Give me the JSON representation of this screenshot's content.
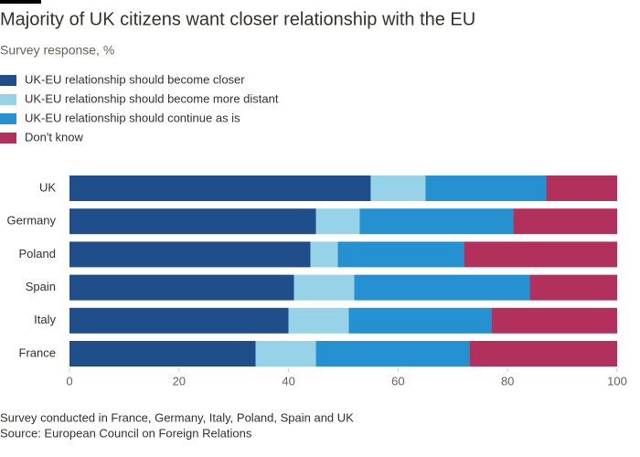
{
  "chart_data": {
    "type": "stacked-barh",
    "title": "Majority of UK citizens want closer relationship with the EU",
    "subtitle": "Survey response, %",
    "categories": [
      "UK",
      "Germany",
      "Poland",
      "Spain",
      "Italy",
      "France"
    ],
    "series": [
      {
        "name": "UK-EU relationship should become closer",
        "color": "#1f4e8a",
        "values": [
          55,
          45,
          44,
          41,
          40,
          34
        ]
      },
      {
        "name": "UK-EU relationship should become more distant",
        "color": "#96d3e8",
        "values": [
          10,
          8,
          5,
          11,
          11,
          11
        ]
      },
      {
        "name": "UK-EU relationship should continue as is",
        "color": "#2591d0",
        "values": [
          22,
          28,
          23,
          32,
          26,
          28
        ]
      },
      {
        "name": "Don't know",
        "color": "#b2305c",
        "values": [
          13,
          19,
          28,
          16,
          23,
          27
        ]
      }
    ],
    "xlim": [
      0,
      100
    ],
    "xticks": [
      0,
      20,
      40,
      60,
      80,
      100
    ],
    "notes": [
      "Survey conducted in France, Germany, Italy, Poland, Spain and UK",
      "Source: European Council on Foreign Relations"
    ]
  }
}
